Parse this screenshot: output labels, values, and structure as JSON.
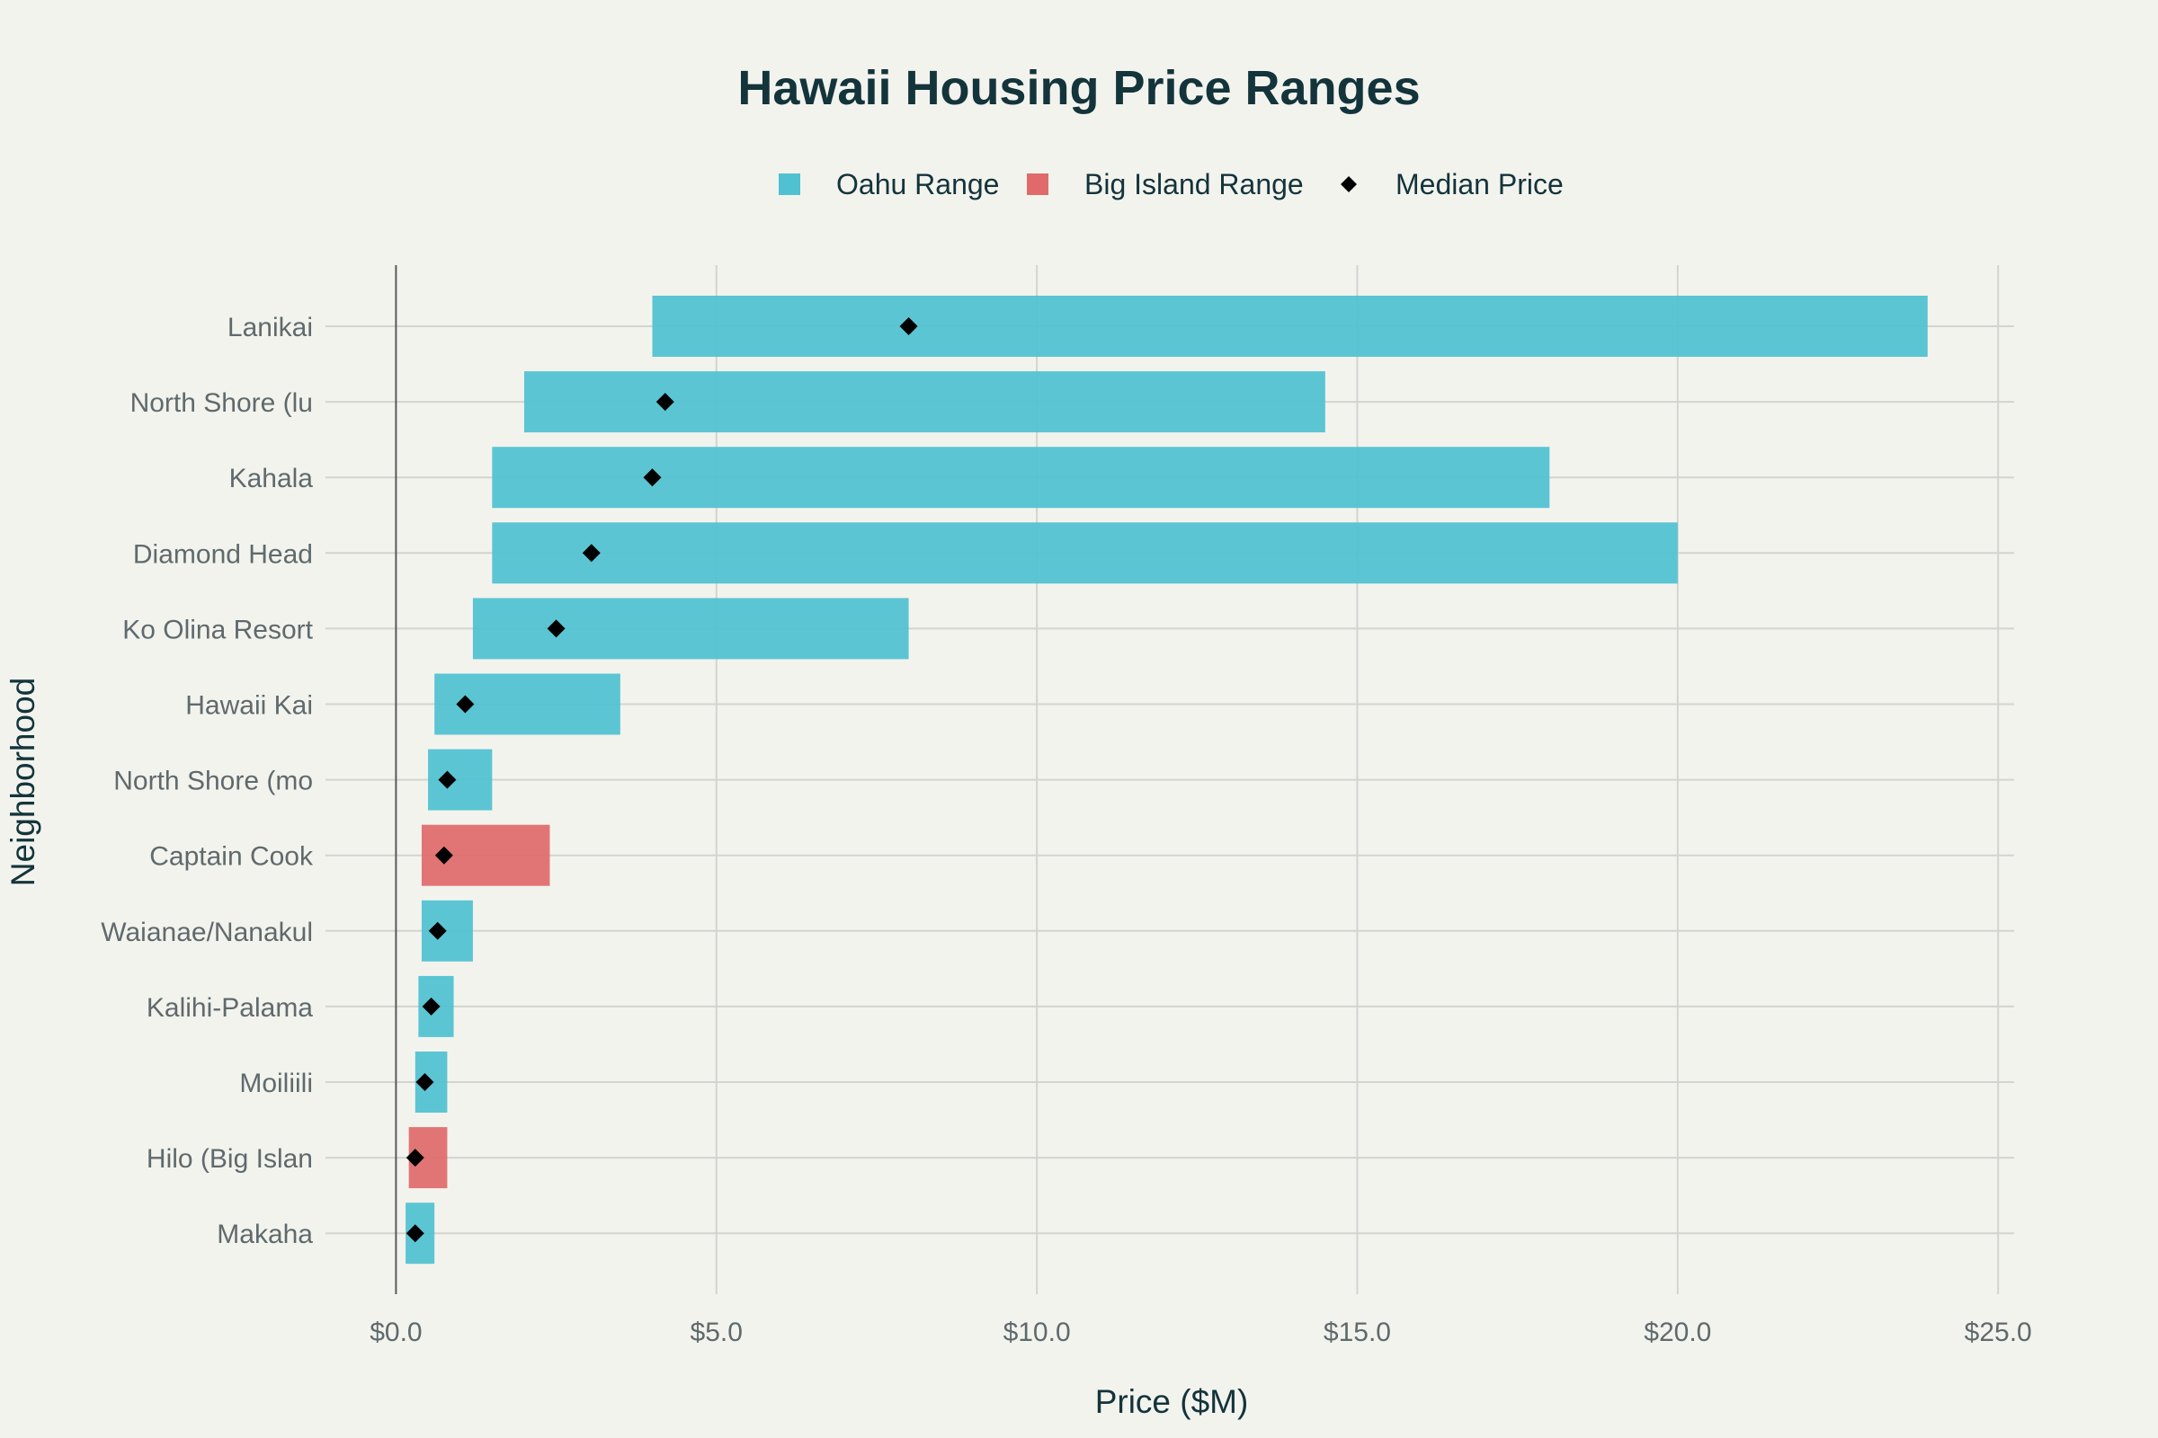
{
  "chart_data": {
    "type": "bar",
    "orientation": "horizontal",
    "title": "Hawaii Housing Price Ranges",
    "xlabel": "Price ($M)",
    "ylabel": "Neighborhood",
    "xlim": [
      -1.1,
      25.25
    ],
    "xticks": [
      0,
      5,
      10,
      15,
      20,
      25
    ],
    "xtick_labels": [
      "$0.0",
      "$5.0",
      "$10.0",
      "$15.0",
      "$20.0",
      "$25.0"
    ],
    "grid": true,
    "legend_position": "top-center",
    "legend": [
      {
        "name": "Oahu Range",
        "symbol": "square",
        "color": "#4fc1d0"
      },
      {
        "name": "Big Island Range",
        "symbol": "square",
        "color": "#e06a6a"
      },
      {
        "name": "Median Price",
        "symbol": "diamond",
        "color": "#000000"
      }
    ],
    "categories": [
      "Lanikai",
      "North Shore (lu",
      "Kahala",
      "Diamond Head",
      "Ko Olina Resort",
      "Hawaii Kai",
      "North Shore (mo",
      "Captain Cook",
      "Waianae/Nanakul",
      "Kalihi-Palama",
      "Moiliili",
      "Hilo (Big Islan",
      "Makaha"
    ],
    "series": [
      {
        "name": "Oahu Range",
        "color": "#4fc1d0",
        "items": [
          {
            "category": "Lanikai",
            "min": 4.0,
            "max": 23.9
          },
          {
            "category": "North Shore (lu",
            "min": 2.0,
            "max": 14.5
          },
          {
            "category": "Kahala",
            "min": 1.5,
            "max": 18.0
          },
          {
            "category": "Diamond Head",
            "min": 1.5,
            "max": 20.0
          },
          {
            "category": "Ko Olina Resort",
            "min": 1.2,
            "max": 8.0
          },
          {
            "category": "Hawaii Kai",
            "min": 0.6,
            "max": 3.5
          },
          {
            "category": "North Shore (mo",
            "min": 0.5,
            "max": 1.5
          },
          {
            "category": "Waianae/Nanakul",
            "min": 0.4,
            "max": 1.2
          },
          {
            "category": "Kalihi-Palama",
            "min": 0.35,
            "max": 0.9
          },
          {
            "category": "Moiliili",
            "min": 0.3,
            "max": 0.8
          },
          {
            "category": "Makaha",
            "min": 0.15,
            "max": 0.6
          }
        ]
      },
      {
        "name": "Big Island Range",
        "color": "#e06a6a",
        "items": [
          {
            "category": "Captain Cook",
            "min": 0.4,
            "max": 2.4
          },
          {
            "category": "Hilo (Big Islan",
            "min": 0.2,
            "max": 0.8
          }
        ]
      },
      {
        "name": "Median Price",
        "color": "#000000",
        "items": [
          {
            "category": "Lanikai",
            "value": 8.0
          },
          {
            "category": "North Shore (lu",
            "value": 4.2
          },
          {
            "category": "Kahala",
            "value": 4.0
          },
          {
            "category": "Diamond Head",
            "value": 3.05
          },
          {
            "category": "Ko Olina Resort",
            "value": 2.5
          },
          {
            "category": "Hawaii Kai",
            "value": 1.08
          },
          {
            "category": "North Shore (mo",
            "value": 0.8
          },
          {
            "category": "Captain Cook",
            "value": 0.75
          },
          {
            "category": "Waianae/Nanakul",
            "value": 0.65
          },
          {
            "category": "Kalihi-Palama",
            "value": 0.55
          },
          {
            "category": "Moiliili",
            "value": 0.45
          },
          {
            "category": "Hilo (Big Islan",
            "value": 0.3
          },
          {
            "category": "Makaha",
            "value": 0.3
          }
        ]
      }
    ]
  }
}
